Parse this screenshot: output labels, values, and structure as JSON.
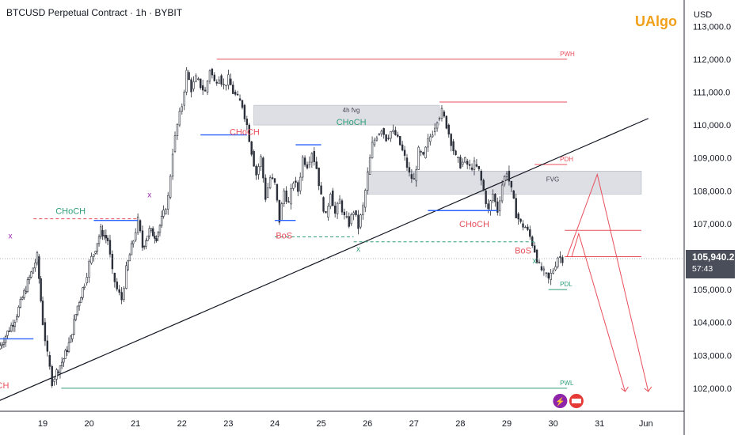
{
  "header": {
    "title": "BTCUSD Perpetual Contract · 1h · BYBIT",
    "brand": "UAlgo",
    "currency": "USD"
  },
  "last_price": {
    "value": "105,940.2",
    "countdown": "57:43"
  },
  "colors": {
    "candle": "#2a2e39",
    "bearish_structure": "#e8505b",
    "bullish_structure": "#2f9e79",
    "structure_line": "#2962ff",
    "swing_mark": "#9c27b0",
    "brand": "#f0a01a",
    "fvg_fill": "#d1d4dc"
  },
  "chart_data": {
    "type": "candlestick",
    "symbol": "BTCUSD Perpetual Contract",
    "interval": "1h",
    "exchange": "BYBIT",
    "x": [
      "19",
      "20",
      "21",
      "22",
      "23",
      "24",
      "25",
      "26",
      "27",
      "28",
      "29",
      "30",
      "31",
      "Jun"
    ],
    "ylim": [
      101300,
      113800
    ],
    "y_ticks": [
      "113,000.0",
      "112,000.0",
      "111,000.0",
      "110,000.0",
      "109,000.0",
      "108,000.0",
      "107,000.0",
      "106,000.0",
      "105,000.0",
      "104,000.0",
      "103,000.0",
      "102,000.0"
    ],
    "y_tick_values": [
      113000,
      112000,
      111000,
      110000,
      109000,
      108000,
      107000,
      106000,
      105000,
      104000,
      103000,
      102000
    ],
    "close_path": [
      [
        18.05,
        103200
      ],
      [
        18.2,
        103600
      ],
      [
        18.4,
        104100
      ],
      [
        18.6,
        104900
      ],
      [
        18.75,
        105500
      ],
      [
        18.88,
        106000
      ],
      [
        19.0,
        104000
      ],
      [
        19.1,
        103000
      ],
      [
        19.2,
        102200
      ],
      [
        19.3,
        102500
      ],
      [
        19.45,
        102900
      ],
      [
        19.6,
        103500
      ],
      [
        19.75,
        104500
      ],
      [
        19.9,
        105200
      ],
      [
        20.0,
        105800
      ],
      [
        20.1,
        106100
      ],
      [
        20.25,
        106800
      ],
      [
        20.4,
        106500
      ],
      [
        20.5,
        105500
      ],
      [
        20.6,
        105000
      ],
      [
        20.7,
        104700
      ],
      [
        20.8,
        105600
      ],
      [
        20.95,
        106500
      ],
      [
        21.05,
        107100
      ],
      [
        21.15,
        106300
      ],
      [
        21.3,
        106800
      ],
      [
        21.45,
        106600
      ],
      [
        21.6,
        107300
      ],
      [
        21.7,
        107800
      ],
      [
        21.8,
        109200
      ],
      [
        21.9,
        110000
      ],
      [
        22.0,
        110600
      ],
      [
        22.1,
        111600
      ],
      [
        22.2,
        111100
      ],
      [
        22.3,
        111400
      ],
      [
        22.4,
        111200
      ],
      [
        22.5,
        111000
      ],
      [
        22.6,
        111700
      ],
      [
        22.7,
        111300
      ],
      [
        22.8,
        111500
      ],
      [
        22.9,
        111200
      ],
      [
        23.0,
        111400
      ],
      [
        23.1,
        111000
      ],
      [
        23.2,
        110800
      ],
      [
        23.3,
        110600
      ],
      [
        23.4,
        110000
      ],
      [
        23.5,
        109200
      ],
      [
        23.6,
        108500
      ],
      [
        23.7,
        109000
      ],
      [
        23.8,
        107800
      ],
      [
        23.9,
        108400
      ],
      [
        24.0,
        108200
      ],
      [
        24.1,
        107100
      ],
      [
        24.2,
        108000
      ],
      [
        24.3,
        107600
      ],
      [
        24.4,
        108300
      ],
      [
        24.5,
        108000
      ],
      [
        24.6,
        109000
      ],
      [
        24.7,
        108800
      ],
      [
        24.8,
        109200
      ],
      [
        24.9,
        108700
      ],
      [
        25.0,
        107800
      ],
      [
        25.1,
        107200
      ],
      [
        25.2,
        108000
      ],
      [
        25.3,
        107300
      ],
      [
        25.4,
        107700
      ],
      [
        25.5,
        107200
      ],
      [
        25.6,
        107000
      ],
      [
        25.7,
        107400
      ],
      [
        25.8,
        106900
      ],
      [
        25.9,
        107500
      ],
      [
        26.0,
        108500
      ],
      [
        26.1,
        109400
      ],
      [
        26.2,
        109700
      ],
      [
        26.3,
        109900
      ],
      [
        26.4,
        109600
      ],
      [
        26.5,
        109800
      ],
      [
        26.6,
        109700
      ],
      [
        26.7,
        109400
      ],
      [
        26.8,
        109000
      ],
      [
        26.9,
        108500
      ],
      [
        27.0,
        108300
      ],
      [
        27.1,
        109200
      ],
      [
        27.2,
        109000
      ],
      [
        27.3,
        109500
      ],
      [
        27.4,
        109800
      ],
      [
        27.5,
        110200
      ],
      [
        27.6,
        110400
      ],
      [
        27.7,
        110000
      ],
      [
        27.8,
        109500
      ],
      [
        27.9,
        109000
      ],
      [
        28.0,
        108800
      ],
      [
        28.1,
        108900
      ],
      [
        28.2,
        108700
      ],
      [
        28.3,
        108800
      ],
      [
        28.4,
        108600
      ],
      [
        28.5,
        108000
      ],
      [
        28.6,
        107400
      ],
      [
        28.7,
        107900
      ],
      [
        28.8,
        107400
      ],
      [
        28.9,
        108200
      ],
      [
        29.0,
        108600
      ],
      [
        29.1,
        108000
      ],
      [
        29.2,
        107300
      ],
      [
        29.3,
        107000
      ],
      [
        29.4,
        106900
      ],
      [
        29.5,
        106600
      ],
      [
        29.6,
        106200
      ],
      [
        29.7,
        105700
      ],
      [
        29.8,
        105500
      ],
      [
        29.9,
        105300
      ],
      [
        30.0,
        105600
      ],
      [
        30.1,
        106000
      ],
      [
        30.2,
        105940
      ]
    ],
    "zones": [
      {
        "label": "4h fvg",
        "x_start": 23.55,
        "x_end": 27.55,
        "y_low": 110000,
        "y_high": 110600
      },
      {
        "label": "FVG",
        "x_start": 26.0,
        "x_end": 31.9,
        "y_low": 107900,
        "y_high": 108600
      }
    ],
    "levels": [
      {
        "label": "PWH",
        "x_start": 22.75,
        "x_end": 30.3,
        "y": 112000,
        "color": "bearish"
      },
      {
        "label": "",
        "x_start": 27.55,
        "x_end": 30.3,
        "y": 110700,
        "color": "bearish"
      },
      {
        "label": "PDH",
        "x_start": 29.6,
        "x_end": 30.3,
        "y": 108800,
        "color": "bearish"
      },
      {
        "label": "",
        "x_start": 30.25,
        "x_end": 31.9,
        "y": 106800,
        "color": "bearish"
      },
      {
        "label": "",
        "x_start": 30.25,
        "x_end": 31.9,
        "y": 106000,
        "color": "bearish"
      },
      {
        "label": "PDL",
        "x_start": 29.9,
        "x_end": 30.3,
        "y": 105000,
        "color": "bullish"
      },
      {
        "label": "PWL",
        "x_start": 19.4,
        "x_end": 30.3,
        "y": 102000,
        "color": "bullish"
      }
    ],
    "structure_labels": [
      {
        "text": "CHoCH",
        "x": 19.6,
        "y": 107300,
        "color": "bullish"
      },
      {
        "text": "CHoCH",
        "x": 17.95,
        "y": 102000,
        "color": "bearish"
      },
      {
        "text": "CHoCH",
        "x": 23.35,
        "y": 109700,
        "color": "bearish"
      },
      {
        "text": "BoS",
        "x": 24.2,
        "y": 106550,
        "color": "bearish"
      },
      {
        "text": "CHoCH",
        "x": 25.65,
        "y": 110000,
        "color": "bullish"
      },
      {
        "text": "CHoCH",
        "x": 28.3,
        "y": 106900,
        "color": "bearish"
      },
      {
        "text": "BoS",
        "x": 29.35,
        "y": 106100,
        "color": "bearish"
      }
    ],
    "swing_marks": [
      {
        "text": "x",
        "x": 18.3,
        "y": 106550,
        "color": "swing"
      },
      {
        "text": "x",
        "x": 21.3,
        "y": 107800,
        "color": "swing"
      },
      {
        "text": "x",
        "x": 25.8,
        "y": 106150,
        "color": "bullish"
      },
      {
        "text": "x",
        "x": 29.6,
        "y": 105800,
        "color": "bullish"
      }
    ],
    "trendline": {
      "x": [
        17.7,
        32.05
      ],
      "y": [
        101400,
        110200
      ]
    },
    "projections": [
      {
        "x": [
          30.3,
          30.95,
          32.05
        ],
        "y": [
          106000,
          108500,
          101900
        ]
      },
      {
        "x": [
          30.4,
          30.55,
          31.55
        ],
        "y": [
          106000,
          106700,
          101900
        ]
      }
    ]
  }
}
